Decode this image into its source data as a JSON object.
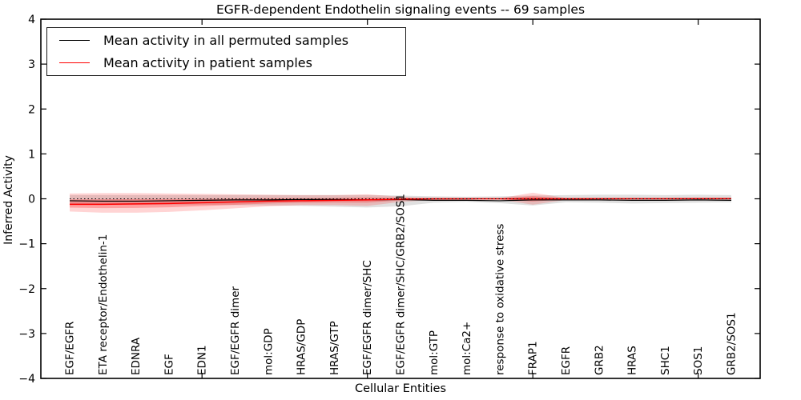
{
  "legend": {
    "items": [
      {
        "label": "Mean activity in all permuted samples",
        "color": "#000000"
      },
      {
        "label": "Mean activity in patient samples",
        "color": "#ff0000"
      }
    ]
  },
  "chart_data": {
    "type": "line",
    "title": "EGFR-dependent Endothelin signaling events -- 69 samples",
    "xlabel": "Cellular Entities",
    "ylabel": "Inferred Activity",
    "ylim": [
      -4,
      4
    ],
    "yticks": [
      4,
      3,
      2,
      1,
      0,
      -1,
      -2,
      -3,
      -4
    ],
    "xtick_major_indices": [
      4,
      9,
      14,
      19
    ],
    "grid": false,
    "zero_line": {
      "style": "dotted",
      "y": 0,
      "color": "#000000"
    },
    "legend_position": "upper left",
    "categories": [
      "EGF/EGFR",
      "ETA receptor/Endothelin-1",
      "EDNRA",
      "EGF",
      "EDN1",
      "EGF/EGFR dimer",
      "mol:GDP",
      "HRAS/GDP",
      "HRAS/GTP",
      "EGF/EGFR dimer/SHC",
      "EGF/EGFR dimer/SHC/GRB2/SOS1",
      "mol:GTP",
      "mol:Ca2+",
      "response to oxidative stress",
      "FRAP1",
      "EGFR",
      "GRB2",
      "HRAS",
      "SHC1",
      "SOS1",
      "GRB2/SOS1"
    ],
    "series": [
      {
        "name": "Mean activity in all permuted samples",
        "color": "#000000",
        "width": 1.2,
        "values": [
          -0.043,
          -0.052,
          -0.052,
          -0.043,
          -0.034,
          -0.025,
          -0.025,
          -0.016,
          -0.016,
          -0.025,
          -0.016,
          -0.034,
          -0.034,
          -0.043,
          -0.025,
          -0.025,
          -0.025,
          -0.034,
          -0.034,
          -0.025,
          -0.034
        ]
      },
      {
        "name": "Mean activity in patient samples",
        "color": "#ff0000",
        "width": 1.5,
        "values": [
          -0.123,
          -0.123,
          -0.114,
          -0.105,
          -0.087,
          -0.07,
          -0.052,
          -0.043,
          -0.034,
          -0.025,
          -0.007,
          0.0,
          0.0,
          0.0,
          0.0,
          0.0,
          0.002,
          0.002,
          0.002,
          0.004,
          0.004
        ]
      }
    ],
    "bands": [
      {
        "name": "permuted-sample-range",
        "color": "rgba(0,0,0,0.12)",
        "upper": [
          0.082,
          0.082,
          0.082,
          0.082,
          0.082,
          0.082,
          0.082,
          0.082,
          0.082,
          0.082,
          0.073,
          0.055,
          0.046,
          0.055,
          0.073,
          0.082,
          0.091,
          0.091,
          0.082,
          0.091,
          0.082
        ],
        "lower": [
          -0.132,
          -0.132,
          -0.132,
          -0.132,
          -0.132,
          -0.141,
          -0.15,
          -0.159,
          -0.177,
          -0.194,
          -0.168,
          -0.087,
          -0.07,
          -0.096,
          -0.15,
          -0.078,
          -0.087,
          -0.105,
          -0.096,
          -0.087,
          -0.078
        ]
      },
      {
        "name": "patient-sample-range",
        "color": "rgba(255,0,0,0.17)",
        "upper": [
          0.118,
          0.127,
          0.127,
          0.118,
          0.109,
          0.1,
          0.091,
          0.082,
          0.082,
          0.1,
          0.046,
          0.02,
          0.014,
          0.014,
          0.135,
          0.02,
          0.014,
          0.014,
          0.014,
          0.014,
          0.02
        ],
        "lower": [
          -0.283,
          -0.31,
          -0.31,
          -0.292,
          -0.257,
          -0.212,
          -0.168,
          -0.141,
          -0.141,
          -0.159,
          -0.07,
          -0.025,
          -0.016,
          -0.016,
          -0.132,
          -0.025,
          -0.016,
          -0.016,
          -0.016,
          -0.016,
          -0.025
        ]
      }
    ]
  }
}
